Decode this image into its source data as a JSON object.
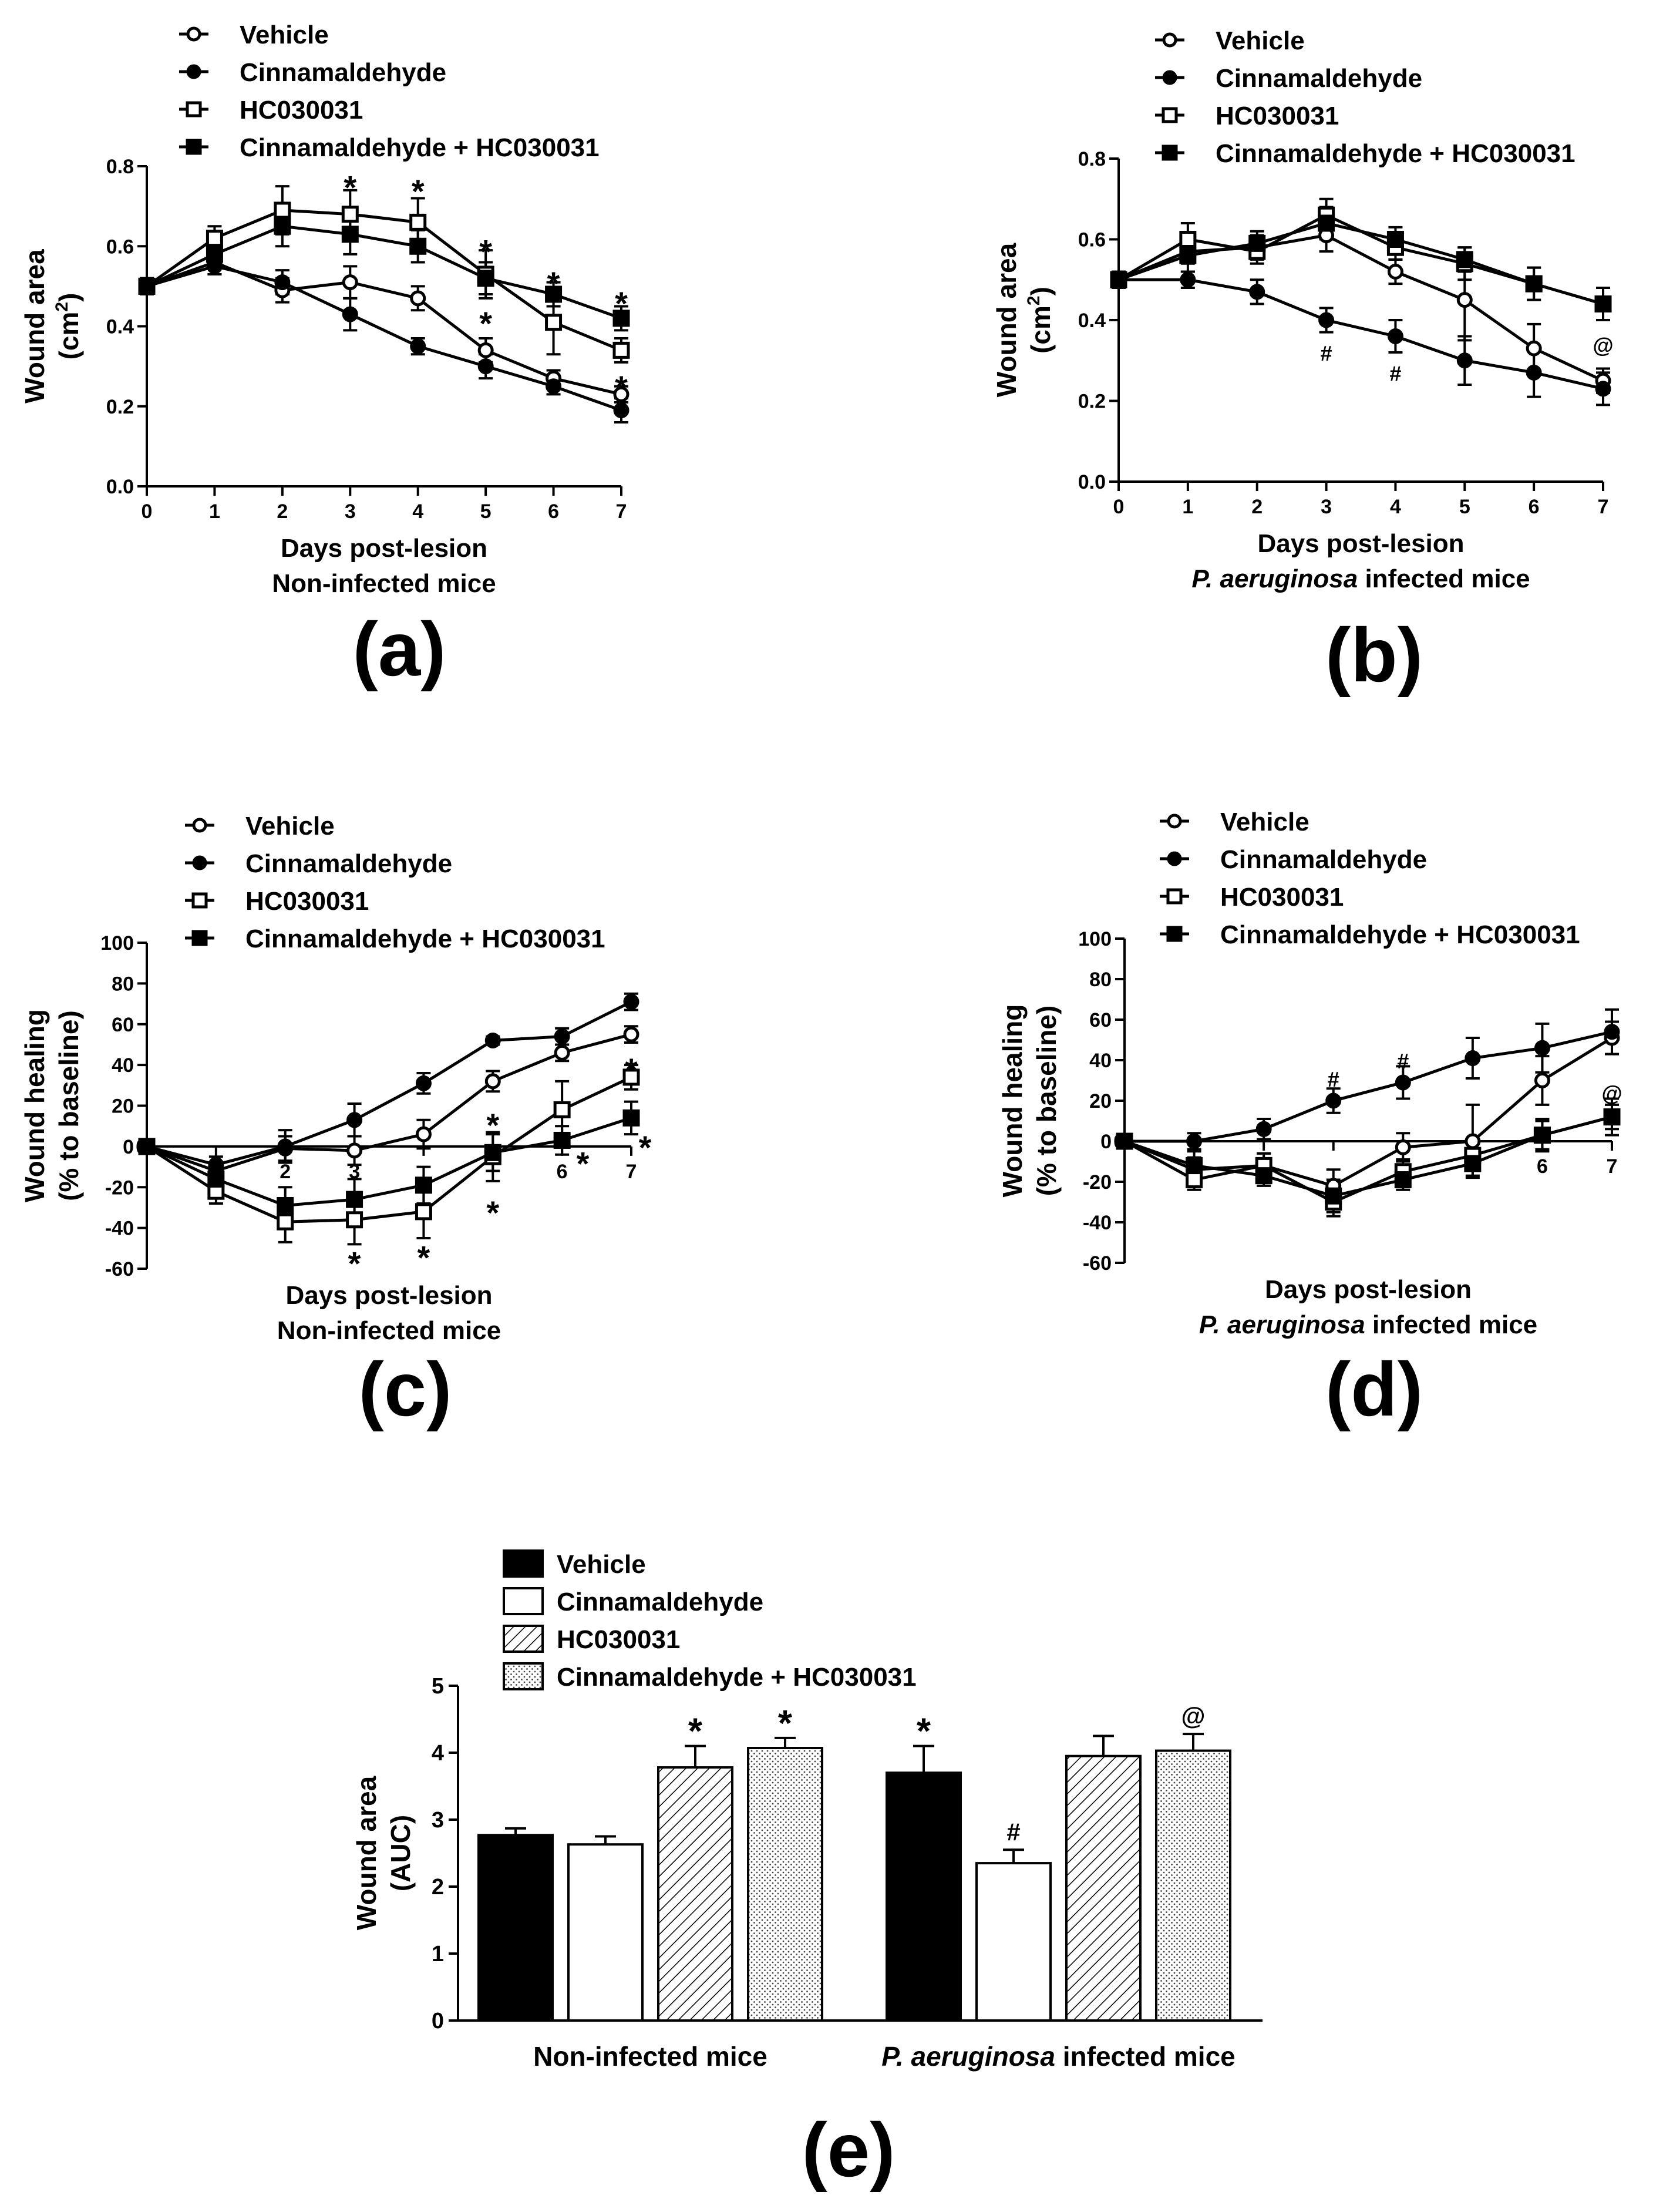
{
  "chart_data": [
    {
      "panel": "a",
      "type": "line",
      "panel_label": "(a)",
      "ylabel": [
        "Wound area",
        "(cm",
        "2",
        ")"
      ],
      "xlabel": [
        "Days post-lesion",
        "Non-infected mice"
      ],
      "x": [
        0,
        1,
        2,
        3,
        4,
        5,
        6,
        7
      ],
      "ylim": [
        0,
        0.8
      ],
      "yticks": [
        "0.0",
        "0.2",
        "0.4",
        "0.6",
        "0.8"
      ],
      "yticks_values": [
        0,
        0.2,
        0.4,
        0.6,
        0.8
      ],
      "series": [
        {
          "name": "Vehicle",
          "marker": "open-circle",
          "values": [
            0.5,
            0.56,
            0.49,
            0.51,
            0.47,
            0.34,
            0.27,
            0.23
          ],
          "errors": [
            0.02,
            0.03,
            0.03,
            0.04,
            0.03,
            0.03,
            0.02,
            0.02
          ]
        },
        {
          "name": "Cinnamaldehyde",
          "marker": "filled-circle",
          "values": [
            0.5,
            0.55,
            0.51,
            0.43,
            0.35,
            0.3,
            0.25,
            0.19
          ],
          "errors": [
            0.02,
            0.02,
            0.03,
            0.04,
            0.02,
            0.03,
            0.02,
            0.03
          ]
        },
        {
          "name": "HC030031",
          "marker": "open-square",
          "values": [
            0.5,
            0.62,
            0.69,
            0.68,
            0.66,
            0.53,
            0.41,
            0.34
          ],
          "errors": [
            0.02,
            0.03,
            0.06,
            0.06,
            0.06,
            0.06,
            0.08,
            0.03
          ]
        },
        {
          "name": "Cinnamaldehyde + HC030031",
          "marker": "filled-square",
          "values": [
            0.5,
            0.58,
            0.65,
            0.63,
            0.6,
            0.52,
            0.48,
            0.42
          ],
          "errors": [
            0.02,
            0.03,
            0.05,
            0.05,
            0.04,
            0.04,
            0.03,
            0.03
          ]
        }
      ],
      "annotations": [
        {
          "text": "*",
          "x": 3,
          "y": 0.76
        },
        {
          "text": "*",
          "x": 4,
          "y": 0.75
        },
        {
          "text": "*",
          "x": 5,
          "y": 0.6
        },
        {
          "text": "*",
          "x": 5,
          "y": 0.42
        },
        {
          "text": "*",
          "x": 6,
          "y": 0.52
        },
        {
          "text": "*",
          "x": 7,
          "y": 0.47
        },
        {
          "text": "*",
          "x": 7,
          "y": 0.26
        }
      ]
    },
    {
      "panel": "b",
      "type": "line",
      "panel_label": "(b)",
      "ylabel": [
        "Wound area",
        "(cm",
        "2",
        ")"
      ],
      "xlabel": [
        "Days post-lesion",
        "P. aeruginosa",
        "infected mice"
      ],
      "x": [
        0,
        1,
        2,
        3,
        4,
        5,
        6,
        7
      ],
      "ylim": [
        0,
        0.8
      ],
      "yticks": [
        "0.0",
        "0.2",
        "0.4",
        "0.6",
        "0.8"
      ],
      "yticks_values": [
        0,
        0.2,
        0.4,
        0.6,
        0.8
      ],
      "series": [
        {
          "name": "Vehicle",
          "marker": "open-circle",
          "values": [
            0.5,
            0.57,
            0.58,
            0.61,
            0.52,
            0.45,
            0.33,
            0.25
          ],
          "errors": [
            0.02,
            0.03,
            0.03,
            0.04,
            0.03,
            0.1,
            0.06,
            0.03
          ]
        },
        {
          "name": "Cinnamaldehyde",
          "marker": "filled-circle",
          "values": [
            0.5,
            0.5,
            0.47,
            0.4,
            0.36,
            0.3,
            0.27,
            0.23
          ],
          "errors": [
            0.02,
            0.02,
            0.03,
            0.03,
            0.04,
            0.06,
            0.06,
            0.04
          ]
        },
        {
          "name": "HC030031",
          "marker": "open-square",
          "values": [
            0.5,
            0.6,
            0.57,
            0.66,
            0.58,
            0.54,
            0.49,
            0.44
          ],
          "errors": [
            0.02,
            0.04,
            0.03,
            0.04,
            0.03,
            0.04,
            0.04,
            0.04
          ]
        },
        {
          "name": "Cinnamaldehyde + HC030031",
          "marker": "filled-square",
          "values": [
            0.5,
            0.56,
            0.59,
            0.64,
            0.6,
            0.55,
            0.49,
            0.44
          ],
          "errors": [
            0.02,
            0.04,
            0.03,
            0.04,
            0.03,
            0.03,
            0.04,
            0.04
          ]
        }
      ],
      "annotations": [
        {
          "text": "#",
          "x": 3,
          "y": 0.32
        },
        {
          "text": "#",
          "x": 4,
          "y": 0.27
        },
        {
          "text": "@",
          "x": 7,
          "y": 0.34
        }
      ]
    },
    {
      "panel": "c",
      "type": "line",
      "panel_label": "(c)",
      "ylabel": [
        "Wound healing",
        "(% to baseline)"
      ],
      "xlabel": [
        "Days post-lesion",
        "Non-infected mice"
      ],
      "x": [
        0,
        1,
        2,
        3,
        4,
        5,
        6,
        7
      ],
      "ylim": [
        -60,
        100
      ],
      "yticks": [
        "-60",
        "-40",
        "-20",
        "0",
        "20",
        "40",
        "60",
        "80",
        "100"
      ],
      "yticks_values": [
        -60,
        -40,
        -20,
        0,
        20,
        40,
        60,
        80,
        100
      ],
      "series": [
        {
          "name": "Vehicle",
          "marker": "open-circle",
          "values": [
            0,
            -12,
            -1,
            -2,
            6,
            32,
            46,
            55
          ],
          "errors": [
            2,
            4,
            6,
            7,
            7,
            5,
            4,
            4
          ]
        },
        {
          "name": "Cinnamaldehyde",
          "marker": "filled-circle",
          "values": [
            0,
            -9,
            0,
            13,
            31,
            52,
            54,
            71
          ],
          "errors": [
            2,
            4,
            8,
            8,
            5,
            2,
            4,
            4
          ]
        },
        {
          "name": "HC030031",
          "marker": "open-square",
          "values": [
            0,
            -22,
            -37,
            -36,
            -32,
            -5,
            18,
            34
          ],
          "errors": [
            2,
            6,
            10,
            12,
            13,
            12,
            14,
            6
          ]
        },
        {
          "name": "Cinnamaldehyde + HC030031",
          "marker": "filled-square",
          "values": [
            0,
            -16,
            -29,
            -26,
            -19,
            -3,
            3,
            14
          ],
          "errors": [
            2,
            6,
            9,
            10,
            9,
            9,
            7,
            8
          ]
        }
      ],
      "annotations": [
        {
          "text": "*",
          "x": 3,
          "y": -55
        },
        {
          "text": "*",
          "x": 4,
          "y": -52
        },
        {
          "text": "*",
          "x": 5,
          "y": 13
        },
        {
          "text": "*",
          "x": 5,
          "y": -30
        },
        {
          "text": "*",
          "x": 6.3,
          "y": -6
        },
        {
          "text": "*",
          "x": 7,
          "y": 40
        },
        {
          "text": "*",
          "x": 7.2,
          "y": 2
        }
      ],
      "inner_ticks": [
        "2",
        "3",
        "6",
        "7"
      ]
    },
    {
      "panel": "d",
      "type": "line",
      "panel_label": "(d)",
      "ylabel": [
        "Wound healing",
        "(% to baseline)"
      ],
      "xlabel": [
        "Days post-lesion",
        "P. aeruginosa",
        "infected mice"
      ],
      "x": [
        0,
        1,
        2,
        3,
        4,
        5,
        6,
        7
      ],
      "ylim": [
        -60,
        100
      ],
      "yticks": [
        "-60",
        "-40",
        "-20",
        "0",
        "20",
        "40",
        "60",
        "80",
        "100"
      ],
      "yticks_values": [
        -60,
        -40,
        -20,
        0,
        20,
        40,
        60,
        80,
        100
      ],
      "series": [
        {
          "name": "Vehicle",
          "marker": "open-circle",
          "values": [
            0,
            -14,
            -12,
            -22,
            -3,
            0,
            30,
            51
          ],
          "errors": [
            3,
            6,
            6,
            8,
            7,
            18,
            12,
            8
          ]
        },
        {
          "name": "Cinnamaldehyde",
          "marker": "filled-circle",
          "values": [
            0,
            0,
            6,
            20,
            29,
            41,
            46,
            54
          ],
          "errors": [
            3,
            4,
            5,
            6,
            8,
            10,
            12,
            11
          ]
        },
        {
          "name": "HC030031",
          "marker": "open-square",
          "values": [
            0,
            -19,
            -12,
            -30,
            -15,
            -7,
            3,
            12
          ],
          "errors": [
            3,
            5,
            6,
            7,
            6,
            7,
            7,
            6
          ]
        },
        {
          "name": "Cinnamaldehyde + HC030031",
          "marker": "filled-square",
          "values": [
            0,
            -12,
            -17,
            -27,
            -19,
            -11,
            3,
            12
          ],
          "errors": [
            3,
            7,
            5,
            8,
            5,
            6,
            8,
            9
          ]
        }
      ],
      "annotations": [
        {
          "text": "#",
          "x": 3,
          "y": 31
        },
        {
          "text": "#",
          "x": 4,
          "y": 40
        },
        {
          "text": "@",
          "x": 7,
          "y": 24
        }
      ],
      "inner_ticks": [
        "6",
        "7"
      ]
    },
    {
      "panel": "e",
      "type": "bar",
      "panel_label": "(e)",
      "ylabel": [
        "Wound area",
        "(AUC)"
      ],
      "categories": [
        "Non-infected mice",
        "P. aeruginosa infected mice"
      ],
      "category_labels": [
        [
          "Non-infected mice"
        ],
        [
          "P. aeruginosa",
          "infected mice"
        ]
      ],
      "ylim": [
        0,
        5
      ],
      "yticks": [
        "0",
        "1",
        "2",
        "3",
        "4",
        "5"
      ],
      "yticks_values": [
        0,
        1,
        2,
        3,
        4,
        5
      ],
      "series": [
        {
          "name": "Vehicle",
          "fill": "solid-black",
          "values": [
            2.77,
            3.7
          ],
          "errors": [
            0.1,
            0.4
          ]
        },
        {
          "name": "Cinnamaldehyde",
          "fill": "white",
          "values": [
            2.63,
            2.35
          ],
          "errors": [
            0.12,
            0.2
          ]
        },
        {
          "name": "HC030031",
          "fill": "diagonal-hatch",
          "values": [
            3.78,
            3.95
          ],
          "errors": [
            0.32,
            0.3
          ]
        },
        {
          "name": "Cinnamaldehyde + HC030031",
          "fill": "dotted",
          "values": [
            4.07,
            4.03
          ],
          "errors": [
            0.15,
            0.25
          ]
        }
      ],
      "annotations": [
        {
          "text": "*",
          "group": 0,
          "bar": 2
        },
        {
          "text": "*",
          "group": 0,
          "bar": 3
        },
        {
          "text": "*",
          "group": 1,
          "bar": 0
        },
        {
          "text": "#",
          "group": 1,
          "bar": 1
        },
        {
          "text": "@",
          "group": 1,
          "bar": 3
        }
      ]
    }
  ],
  "colors": {
    "ink": "#000000",
    "paper": "#ffffff"
  }
}
